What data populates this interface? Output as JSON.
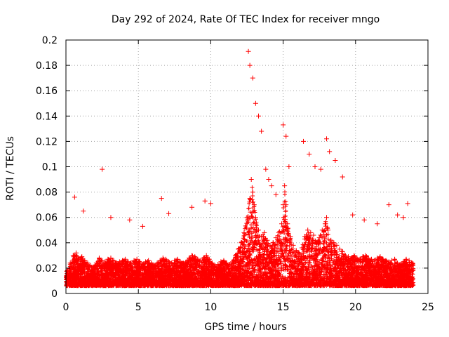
{
  "chart_data": {
    "type": "scatter",
    "title": "Day 292 of 2024, Rate Of TEC Index for receiver mngo",
    "xlabel": "GPS time / hours",
    "ylabel": "ROTI / TECUs",
    "xlim": [
      0,
      25
    ],
    "ylim": [
      0,
      0.2
    ],
    "xticks": [
      "0",
      "5",
      "10",
      "15",
      "20",
      "25"
    ],
    "yticks": [
      "0",
      "0.02",
      "0.04",
      "0.06",
      "0.08",
      "0.1",
      "0.12",
      "0.14",
      "0.16",
      "0.18",
      "0.2"
    ],
    "xtick_values": [
      0,
      5,
      10,
      15,
      20,
      25
    ],
    "ytick_values": [
      0,
      0.02,
      0.04,
      0.06,
      0.08,
      0.1,
      0.12,
      0.14,
      0.16,
      0.18,
      0.2
    ],
    "grid": true,
    "marker": "+",
    "color": "#ff0000",
    "series": [
      {
        "name": "ROTI",
        "x": [
          0.1,
          0.3,
          0.5,
          0.7,
          0.9,
          1.1,
          1.3,
          1.5,
          1.7,
          1.9,
          2.1,
          2.3,
          2.5,
          2.7,
          2.9,
          3.1,
          3.3,
          3.5,
          3.7,
          3.9,
          4.1,
          4.3,
          4.5,
          4.7,
          4.9,
          5.1,
          5.3,
          5.5,
          5.7,
          5.9,
          6.1,
          6.3,
          6.5,
          6.7,
          6.9,
          7.1,
          7.3,
          7.5,
          7.7,
          7.9,
          8.1,
          8.3,
          8.5,
          8.7,
          8.9,
          9.1,
          9.3,
          9.5,
          9.7,
          9.9,
          10.1,
          10.3,
          10.5,
          10.7,
          10.9,
          11.1,
          11.3,
          11.5,
          11.7,
          11.9,
          12.1,
          12.3,
          12.5,
          12.7,
          12.8,
          12.9,
          13.0,
          13.1,
          13.3,
          13.5,
          13.7,
          13.9,
          14.1,
          14.3,
          14.5,
          14.7,
          14.9,
          15.0,
          15.1,
          15.2,
          15.3,
          15.5,
          15.7,
          15.9,
          16.1,
          16.3,
          16.5,
          16.7,
          16.9,
          17.1,
          17.3,
          17.5,
          17.7,
          17.9,
          18.0,
          18.1,
          18.3,
          18.5,
          18.7,
          18.9,
          19.1,
          19.3,
          19.5,
          19.7,
          19.9,
          20.1,
          20.3,
          20.5,
          20.7,
          20.9,
          21.1,
          21.3,
          21.5,
          21.7,
          21.9,
          22.1,
          22.3,
          22.5,
          22.7,
          22.9,
          23.1,
          23.3,
          23.5,
          23.7,
          23.9,
          0.6,
          1.2,
          2.5,
          3.1,
          4.4,
          5.3,
          6.6,
          7.1,
          8.7,
          9.6,
          10.0,
          12.6,
          12.7,
          12.9,
          13.1,
          13.3,
          13.5,
          13.8,
          14.0,
          14.2,
          14.5,
          15.0,
          15.2,
          15.4,
          16.4,
          16.8,
          17.2,
          17.6,
          18.0,
          18.2,
          18.6,
          19.1,
          19.8,
          20.6,
          21.5,
          22.3,
          22.9,
          23.3,
          23.6
        ],
        "y": [
          0.018,
          0.024,
          0.03,
          0.032,
          0.027,
          0.029,
          0.026,
          0.024,
          0.022,
          0.021,
          0.024,
          0.028,
          0.026,
          0.025,
          0.027,
          0.028,
          0.026,
          0.024,
          0.025,
          0.026,
          0.027,
          0.025,
          0.024,
          0.026,
          0.027,
          0.025,
          0.023,
          0.025,
          0.026,
          0.024,
          0.022,
          0.024,
          0.026,
          0.028,
          0.027,
          0.025,
          0.024,
          0.026,
          0.027,
          0.025,
          0.024,
          0.025,
          0.028,
          0.03,
          0.029,
          0.027,
          0.026,
          0.028,
          0.03,
          0.027,
          0.024,
          0.022,
          0.023,
          0.025,
          0.026,
          0.024,
          0.023,
          0.025,
          0.03,
          0.035,
          0.04,
          0.048,
          0.06,
          0.075,
          0.09,
          0.08,
          0.07,
          0.06,
          0.05,
          0.045,
          0.048,
          0.042,
          0.038,
          0.04,
          0.044,
          0.048,
          0.055,
          0.07,
          0.085,
          0.07,
          0.055,
          0.045,
          0.038,
          0.034,
          0.032,
          0.036,
          0.045,
          0.05,
          0.048,
          0.046,
          0.04,
          0.044,
          0.05,
          0.055,
          0.06,
          0.05,
          0.042,
          0.04,
          0.038,
          0.035,
          0.033,
          0.03,
          0.029,
          0.028,
          0.03,
          0.028,
          0.027,
          0.029,
          0.03,
          0.028,
          0.027,
          0.026,
          0.028,
          0.029,
          0.027,
          0.026,
          0.025,
          0.026,
          0.027,
          0.024,
          0.023,
          0.025,
          0.027,
          0.026,
          0.024,
          0.076,
          0.065,
          0.098,
          0.06,
          0.058,
          0.053,
          0.075,
          0.063,
          0.068,
          0.073,
          0.071,
          0.191,
          0.18,
          0.17,
          0.15,
          0.14,
          0.128,
          0.098,
          0.09,
          0.085,
          0.078,
          0.133,
          0.124,
          0.1,
          0.12,
          0.11,
          0.1,
          0.098,
          0.122,
          0.112,
          0.105,
          0.092,
          0.062,
          0.058,
          0.055,
          0.07,
          0.062,
          0.06,
          0.071
        ]
      }
    ]
  }
}
